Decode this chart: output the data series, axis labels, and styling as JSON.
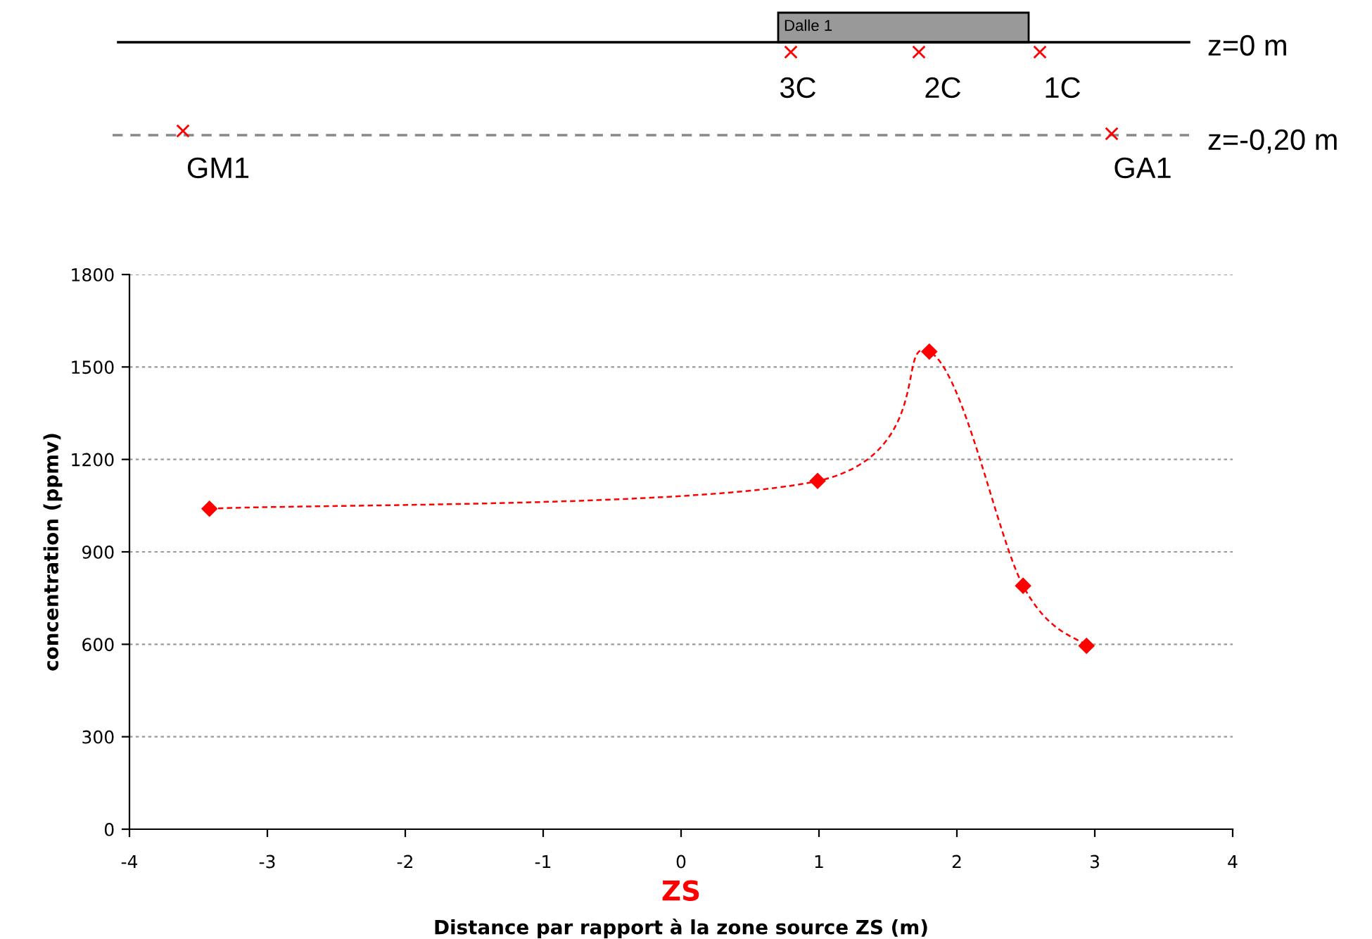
{
  "chart_data": {
    "type": "line",
    "xlabel": "Distance par rapport à la zone source ZS (m)",
    "ylabel": "concentration (ppmv)",
    "x": [
      -3.42,
      0.99,
      1.8,
      2.48,
      2.94
    ],
    "series": [
      {
        "color": "#ff0000",
        "values": [
          1040,
          1130,
          1550,
          790,
          595
        ]
      }
    ],
    "xlim": [
      -4,
      4
    ],
    "xticks": [
      -4,
      -3,
      -2,
      -1,
      0,
      1,
      2,
      3,
      4
    ],
    "ylim": [
      0,
      1800
    ],
    "yticks": [
      0,
      300,
      600,
      900,
      1200,
      1500,
      1800
    ],
    "grid": "y",
    "marker": "diamond",
    "line_style": "dashed",
    "annotations": [
      "Dalle 1",
      "z=0 m",
      "3C",
      "2C",
      "1C",
      "z=-0,20 m",
      "GM1",
      "GA1",
      "ZS"
    ]
  }
}
